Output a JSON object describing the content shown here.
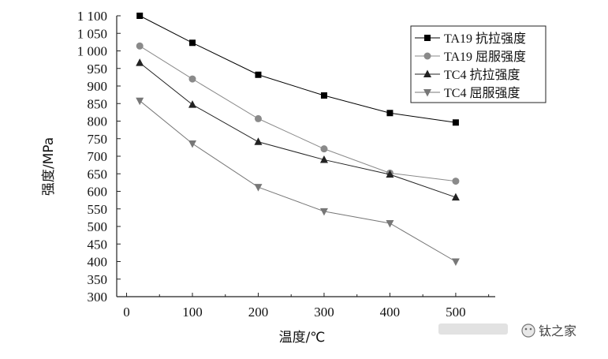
{
  "chart_data": {
    "type": "line",
    "title": "",
    "xlabel": "温度/℃",
    "ylabel": "强度/MPa",
    "xlim": [
      -15,
      560
    ],
    "ylim": [
      300,
      1100
    ],
    "x_ticks": [
      0,
      100,
      200,
      300,
      400,
      500
    ],
    "x_tick_labels": [
      "0",
      "100",
      "200",
      "300",
      "400",
      "500"
    ],
    "y_ticks": [
      300,
      350,
      400,
      450,
      500,
      550,
      600,
      650,
      700,
      750,
      800,
      850,
      900,
      950,
      1000,
      1050,
      1100
    ],
    "y_tick_labels": [
      "300",
      "350",
      "400",
      "450",
      "500",
      "550",
      "600",
      "650",
      "700",
      "750",
      "800",
      "850",
      "900",
      "950",
      "1 000",
      "1 050",
      "1 100"
    ],
    "legend_position": "top-right",
    "series": [
      {
        "name": "TA19 抗拉强度",
        "marker": "square",
        "color": "#000000",
        "x": [
          20,
          100,
          200,
          300,
          400,
          500
        ],
        "values": [
          1100,
          1023,
          932,
          873,
          823,
          796
        ]
      },
      {
        "name": "TA19 屈服强度",
        "marker": "circle",
        "color": "#8a8a8a",
        "x": [
          20,
          100,
          200,
          300,
          400,
          500
        ],
        "values": [
          1014,
          920,
          807,
          721,
          652,
          629
        ]
      },
      {
        "name": "TC4 抗拉强度",
        "marker": "triangle-up",
        "color": "#222222",
        "x": [
          20,
          100,
          200,
          300,
          400,
          500
        ],
        "values": [
          966,
          847,
          741,
          690,
          648,
          583
        ]
      },
      {
        "name": "TC4 屈服强度",
        "marker": "triangle-down",
        "color": "#777777",
        "x": [
          20,
          100,
          200,
          300,
          400,
          500
        ],
        "values": [
          858,
          736,
          612,
          543,
          509,
          400
        ]
      }
    ]
  },
  "watermark": {
    "text": "钛之家"
  }
}
